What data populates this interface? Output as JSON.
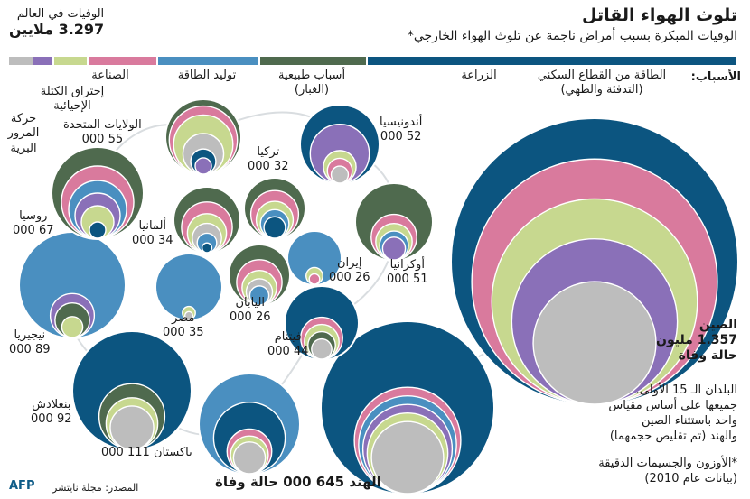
{
  "title": "تلوث الهواء القاتل",
  "subtitle": "الوفيات المبكرة بسبب أمراض ناجمة عن تلوث الهواء الخارجي*",
  "world": {
    "label": "الوفيات في العالم",
    "value": "3.297 ملايين"
  },
  "causes_prefix": "الأسباب:",
  "colors": {
    "residential": "#0c5580",
    "agriculture": "#4f6a4e",
    "natural": "#4a8fc0",
    "power": "#d97a9d",
    "industry": "#c7d88f",
    "biomass": "#8a70b8",
    "traffic": "#bdbdbd"
  },
  "causes": [
    {
      "key": "residential",
      "label": "الطاقة من القطاع السكني\n(التدفئة والطهي)"
    },
    {
      "key": "agriculture",
      "label": "الزراعة"
    },
    {
      "key": "natural",
      "label": "أسباب طبيعية\n(الغبار)"
    },
    {
      "key": "power",
      "label": "توليد الطاقة"
    },
    {
      "key": "industry",
      "label": "الصناعة"
    },
    {
      "key": "biomass",
      "label": "إحتراق الكتلة\nالإحيائية"
    },
    {
      "key": "traffic",
      "label": "حركة\nالمرور\nالبرية"
    }
  ],
  "countries": {
    "china": {
      "name": "الصين",
      "value": "1.357 مليون",
      "unit": "حالة وفاة"
    },
    "india": {
      "label": "الهند 645 000 حالة وفاة"
    },
    "pakistan": {
      "name": "باكستان",
      "value": "111 000"
    },
    "bangladesh": {
      "name": "بنغلادش",
      "value": "92 000"
    },
    "nigeria": {
      "name": "نيجيريا",
      "value": "89 000"
    },
    "russia": {
      "name": "روسيا",
      "value": "67 000"
    },
    "usa": {
      "name": "الولايات المتحدة",
      "value": "55 000"
    },
    "indonesia": {
      "name": "أندونيسيا",
      "value": "52 000"
    },
    "ukraine": {
      "name": "أوكرانيا",
      "value": "51 000"
    },
    "vietnam": {
      "name": "فيتنام",
      "value": "44 000"
    },
    "egypt": {
      "name": "مصر",
      "value": "35 000"
    },
    "germany": {
      "name": "ألمانيا",
      "value": "34 000"
    },
    "turkey": {
      "name": "تركيا",
      "value": "32 000"
    },
    "iran": {
      "name": "إيران",
      "value": "26 000"
    },
    "japan": {
      "name": "اليابان",
      "value": "26 000"
    }
  },
  "notes": {
    "scale": "البلدان الـ 15 الأولى.\nجميعها على أساس مقياس\nواحد باستثناء الصين\nوالهند (تم تقليص حجمهما)",
    "footnote": "*الأوزون والجسيمات الدقيقة\n(بيانات عام 2010)"
  },
  "source": "المصدر: مجلة نايتشر",
  "agency": "AFP",
  "chart_data": {
    "type": "nested-circles",
    "unit": "حالة وفاة",
    "categories": [
      "الصين",
      "الهند",
      "باكستان",
      "بنغلادش",
      "نيجيريا",
      "روسيا",
      "الولايات المتحدة",
      "أندونيسيا",
      "أوكرانيا",
      "فيتنام",
      "مصر",
      "ألمانيا",
      "تركيا",
      "إيران",
      "اليابان"
    ],
    "values": [
      1357000,
      645000,
      111000,
      92000,
      89000,
      67000,
      55000,
      52000,
      51000,
      44000,
      35000,
      34000,
      32000,
      26000,
      26000
    ],
    "world_total": 3297000,
    "legend": [
      "الطاقة من القطاع السكني (التدفئة والطهي)",
      "الزراعة",
      "أسباب طبيعية (الغبار)",
      "توليد الطاقة",
      "الصناعة",
      "إحتراق الكتلة الإحيائية",
      "حركة المرور البرية"
    ],
    "scale_note": "China and India circles scaled down"
  }
}
